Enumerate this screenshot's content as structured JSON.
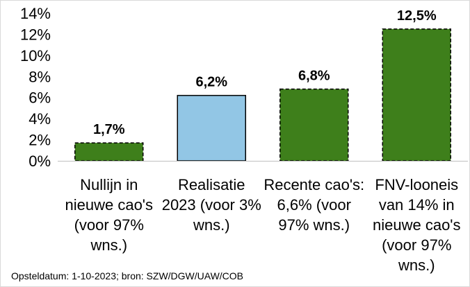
{
  "chart_data": {
    "type": "bar",
    "title": "",
    "xlabel": "",
    "ylabel": "",
    "ylim": [
      0,
      14
    ],
    "ytick_step": 2,
    "ytick_suffix": "%",
    "grid": false,
    "legend": "none",
    "categories": [
      "Nullijn in nieuwe cao's (voor 97% wns.)",
      "Realisatie 2023 (voor 3% wns.)",
      "Recente cao's: 6,6% (voor 97% wns.)",
      "FNV-looneis van 14% in nieuwe cao's (voor 97% wns.)"
    ],
    "category_lines": [
      [
        "Nullijn in",
        "nieuwe cao's",
        "(voor 97%",
        "wns.)"
      ],
      [
        "Realisatie",
        "2023 (voor 3%",
        "wns.)"
      ],
      [
        "Recente cao's:",
        "6,6% (voor",
        "97% wns.)"
      ],
      [
        "FNV-looneis",
        "van 14% in",
        "nieuwe cao's",
        "(voor 97%",
        "wns.)"
      ]
    ],
    "values": [
      1.7,
      6.2,
      6.8,
      12.5
    ],
    "value_labels": [
      "1,7%",
      "6,2%",
      "6,8%",
      "12,5%"
    ],
    "bar_colors": [
      "#3e7f1b",
      "#92c6e5",
      "#3e7f1b",
      "#3e7f1b"
    ],
    "bar_border_dashed": [
      true,
      false,
      true,
      true
    ],
    "footnote": "Opsteldatum: 1-10-2023; bron: SZW/DGW/UAW/COB"
  }
}
